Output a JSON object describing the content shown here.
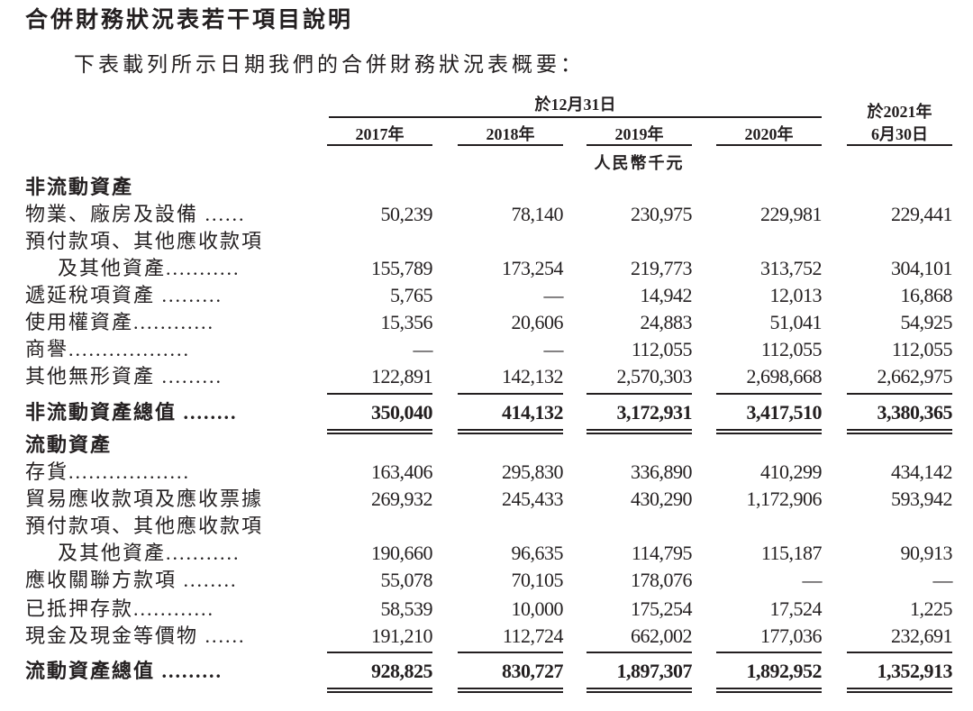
{
  "title": "合併財務狀況表若干項目說明",
  "subtitle": "下表載列所示日期我們的合併財務狀況表概要：",
  "header": {
    "group_label": "於12月31日",
    "last_col_line1": "於2021年",
    "last_col_line2": "6月30日",
    "years": [
      "2017年",
      "2018年",
      "2019年",
      "2020年"
    ],
    "unit": "人民幣千元"
  },
  "rows": [
    {
      "label": "非流動資產",
      "type": "section",
      "values": []
    },
    {
      "label": "物業、廠房及設備 ......",
      "values": [
        "50,239",
        "78,140",
        "230,975",
        "229,981",
        "229,441"
      ]
    },
    {
      "label": "預付款項、其他應收款項",
      "values": []
    },
    {
      "label": "及其他資產...........",
      "indent": true,
      "values": [
        "155,789",
        "173,254",
        "219,773",
        "313,752",
        "304,101"
      ]
    },
    {
      "label": "遞延稅項資產 .........",
      "values": [
        "5,765",
        "—",
        "14,942",
        "12,013",
        "16,868"
      ]
    },
    {
      "label": "使用權資產............",
      "values": [
        "15,356",
        "20,606",
        "24,883",
        "51,041",
        "54,925"
      ]
    },
    {
      "label": "商譽..................",
      "values": [
        "—",
        "—",
        "112,055",
        "112,055",
        "112,055"
      ]
    },
    {
      "label": "其他無形資產 .........",
      "values": [
        "122,891",
        "142,132",
        "2,570,303",
        "2,698,668",
        "2,662,975"
      ]
    },
    {
      "label": "非流動資產總值 ........",
      "type": "total",
      "values": [
        "350,040",
        "414,132",
        "3,172,931",
        "3,417,510",
        "3,380,365"
      ]
    },
    {
      "label": "流動資產",
      "type": "section",
      "values": []
    },
    {
      "label": "存貨..................",
      "values": [
        "163,406",
        "295,830",
        "336,890",
        "410,299",
        "434,142"
      ]
    },
    {
      "label": "貿易應收款項及應收票據",
      "values": [
        "269,932",
        "245,433",
        "430,290",
        "1,172,906",
        "593,942"
      ]
    },
    {
      "label": "預付款項、其他應收款項",
      "values": []
    },
    {
      "label": "及其他資產...........",
      "indent": true,
      "values": [
        "190,660",
        "96,635",
        "114,795",
        "115,187",
        "90,913"
      ]
    },
    {
      "label": "應收關聯方款項 ........",
      "values": [
        "55,078",
        "70,105",
        "178,076",
        "—",
        "—"
      ]
    },
    {
      "label": "已抵押存款............",
      "values": [
        "58,539",
        "10,000",
        "175,254",
        "17,524",
        "1,225"
      ]
    },
    {
      "label": "現金及現金等價物 ......",
      "values": [
        "191,210",
        "112,724",
        "662,002",
        "177,036",
        "232,691"
      ]
    },
    {
      "label": "流動資產總值 .........",
      "type": "total",
      "values": [
        "928,825",
        "830,727",
        "1,897,307",
        "1,892,952",
        "1,352,913"
      ]
    }
  ]
}
